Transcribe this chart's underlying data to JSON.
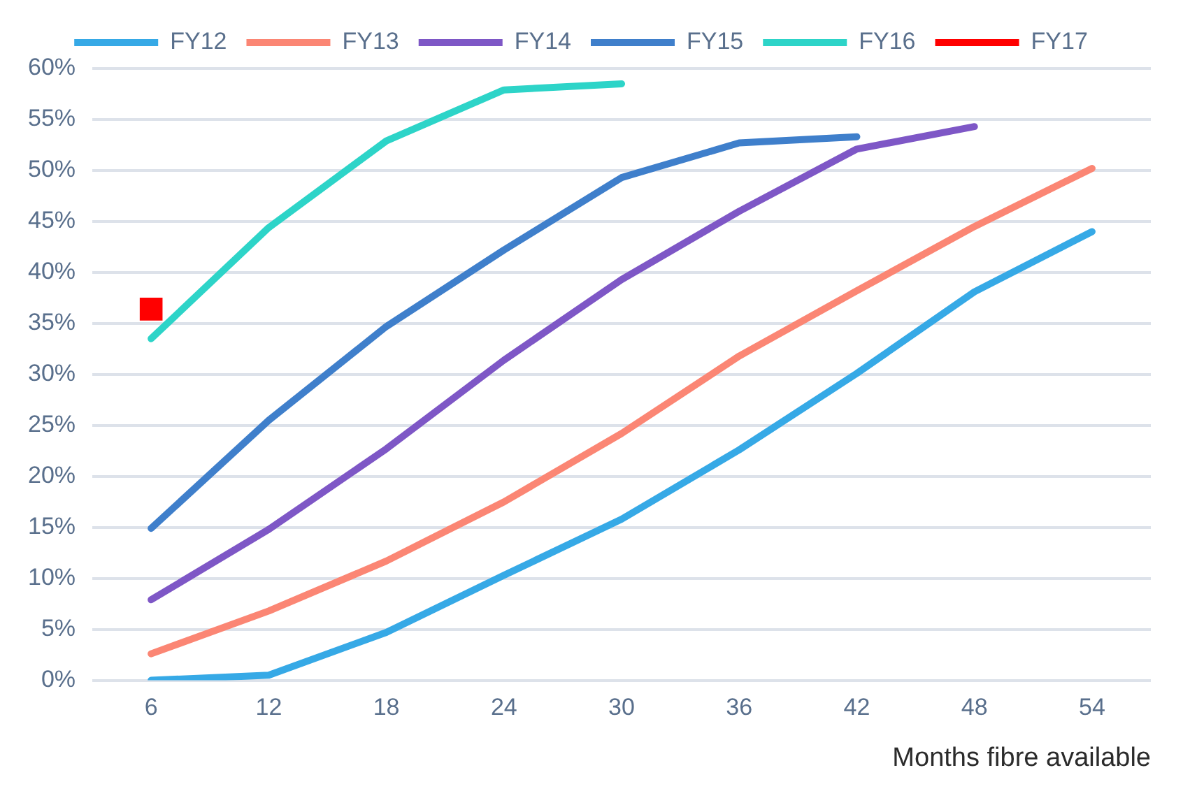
{
  "chart_data": {
    "type": "line",
    "xlabel": "Months fibre available",
    "categories": [
      "6",
      "12",
      "18",
      "24",
      "30",
      "36",
      "42",
      "48",
      "54"
    ],
    "series": [
      {
        "name": "FY12",
        "color": "#36a9e6",
        "values": [
          0,
          0.5,
          4.7,
          10.3,
          15.8,
          22.6,
          30.1,
          38.1,
          44
        ]
      },
      {
        "name": "FY13",
        "color": "#fb8674",
        "values": [
          2.6,
          6.8,
          11.7,
          17.5,
          24.2,
          31.8,
          38.2,
          44.5,
          50.2
        ]
      },
      {
        "name": "FY14",
        "color": "#7e57c6",
        "values": [
          7.9,
          14.8,
          22.7,
          31.4,
          39.3,
          46,
          52.1,
          54.3,
          null
        ]
      },
      {
        "name": "FY15",
        "color": "#3f7fcb",
        "values": [
          14.9,
          25.5,
          34.7,
          42.2,
          49.3,
          52.7,
          53.3,
          null,
          null
        ]
      },
      {
        "name": "FY16",
        "color": "#2dd4c8",
        "values": [
          33.5,
          44.4,
          52.9,
          57.9,
          58.5,
          null,
          null,
          null,
          null
        ]
      },
      {
        "name": "FY17",
        "color": "#ff0000",
        "marker": "square",
        "values": [
          36.4,
          null,
          null,
          null,
          null,
          null,
          null,
          null,
          null
        ]
      }
    ],
    "ylim": [
      0,
      60
    ],
    "yticks": [
      {
        "value": 0,
        "label": "0%"
      },
      {
        "value": 5,
        "label": "5%"
      },
      {
        "value": 10,
        "label": "10%"
      },
      {
        "value": 15,
        "label": "15%"
      },
      {
        "value": 20,
        "label": "20%"
      },
      {
        "value": 25,
        "label": "25%"
      },
      {
        "value": 30,
        "label": "30%"
      },
      {
        "value": 35,
        "label": "35%"
      },
      {
        "value": 40,
        "label": "40%"
      },
      {
        "value": 45,
        "label": "45%"
      },
      {
        "value": 50,
        "label": "50%"
      },
      {
        "value": 55,
        "label": "55%"
      },
      {
        "value": 60,
        "label": "60%"
      }
    ],
    "grid": "y",
    "legend": "top",
    "marker": "none",
    "line_style": "solid"
  }
}
